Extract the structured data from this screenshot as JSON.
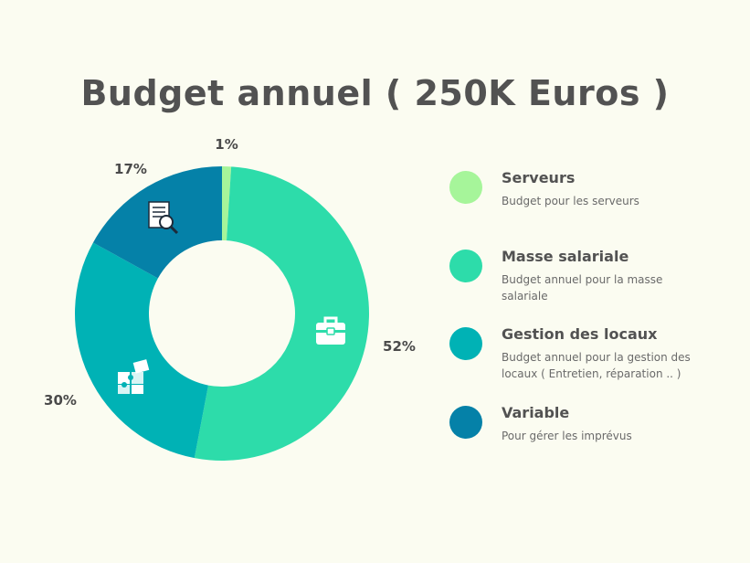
{
  "title": "Budget annuel ( 250K Euros )",
  "chart_data": {
    "type": "pie",
    "variant": "donut",
    "title": "Budget annuel ( 250K Euros )",
    "categories": [
      "Serveurs",
      "Masse salariale",
      "Gestion des locaux",
      "Variable"
    ],
    "values": [
      1,
      52,
      30,
      17
    ],
    "labels": [
      "1%",
      "52%",
      "30%",
      "17%"
    ],
    "colors": [
      "#a6f59a",
      "#2ddcaa",
      "#00b2b5",
      "#0581a8"
    ]
  },
  "legend": [
    {
      "name": "Serveurs",
      "desc": "Budget pour les serveurs",
      "color": "#a6f59a"
    },
    {
      "name": "Masse salariale",
      "desc": "Budget annuel pour la masse salariale",
      "color": "#2ddcaa"
    },
    {
      "name": "Gestion des locaux",
      "desc": "Budget annuel pour la gestion des locaux ( Entretien, réparation .. )",
      "color": "#00b2b5"
    },
    {
      "name": "Variable",
      "desc": "Pour gérer les imprévus",
      "color": "#0581a8"
    }
  ],
  "icons": {
    "masse_salariale": "briefcase-icon",
    "gestion_locaux": "puzzle-icon",
    "variable": "document-search-icon"
  }
}
